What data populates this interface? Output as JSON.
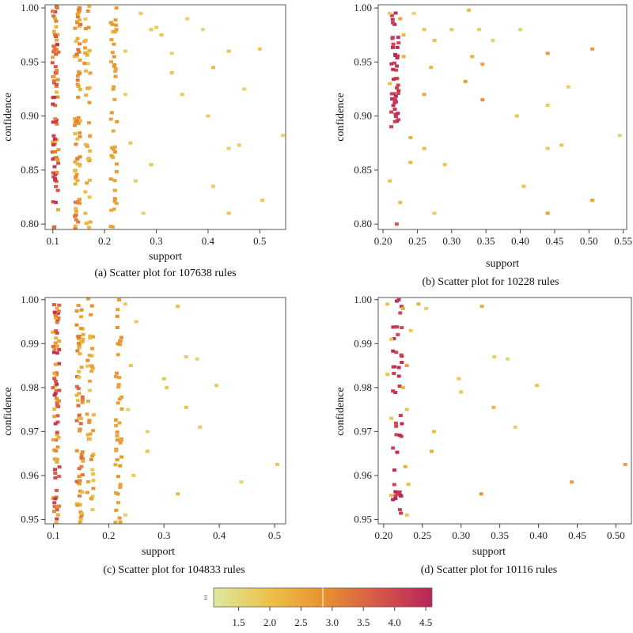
{
  "chart_data": [
    {
      "type": "scatter",
      "caption": "(a) Scatter plot for 107638 rules",
      "xlabel": "support",
      "ylabel": "confidence",
      "xlim": [
        0.085,
        0.55
      ],
      "ylim": [
        0.795,
        1.003
      ],
      "xticks": [
        0.1,
        0.2,
        0.3,
        0.4,
        0.5
      ],
      "xtick_labels": [
        "0.1",
        "0.2",
        "0.3",
        "0.4",
        "0.5"
      ],
      "yticks": [
        0.8,
        0.85,
        0.9,
        0.95,
        1.0
      ],
      "ytick_labels": [
        "0.80",
        "0.85",
        "0.90",
        "0.95",
        "1.00"
      ],
      "grid": false,
      "color_variable": "lift",
      "columns": [
        {
          "x": 0.105,
          "n": 80,
          "lift_min": 2.2,
          "lift_max": 4.5
        },
        {
          "x": 0.148,
          "n": 70,
          "lift_min": 2.0,
          "lift_max": 3.4
        },
        {
          "x": 0.167,
          "n": 40,
          "lift_min": 1.8,
          "lift_max": 3.0
        },
        {
          "x": 0.218,
          "n": 45,
          "lift_min": 2.3,
          "lift_max": 2.8
        }
      ],
      "points": [
        {
          "x": 0.27,
          "y": 0.995,
          "lift": 1.8
        },
        {
          "x": 0.29,
          "y": 0.98,
          "lift": 1.9
        },
        {
          "x": 0.31,
          "y": 0.975,
          "lift": 2.0
        },
        {
          "x": 0.33,
          "y": 0.958,
          "lift": 1.7
        },
        {
          "x": 0.36,
          "y": 0.99,
          "lift": 1.6
        },
        {
          "x": 0.39,
          "y": 0.98,
          "lift": 1.5
        },
        {
          "x": 0.41,
          "y": 0.945,
          "lift": 2.1
        },
        {
          "x": 0.44,
          "y": 0.96,
          "lift": 1.9
        },
        {
          "x": 0.47,
          "y": 0.925,
          "lift": 1.6
        },
        {
          "x": 0.5,
          "y": 0.962,
          "lift": 1.8
        },
        {
          "x": 0.4,
          "y": 0.9,
          "lift": 1.7
        },
        {
          "x": 0.35,
          "y": 0.92,
          "lift": 1.8
        },
        {
          "x": 0.44,
          "y": 0.87,
          "lift": 1.6
        },
        {
          "x": 0.46,
          "y": 0.873,
          "lift": 1.7
        },
        {
          "x": 0.545,
          "y": 0.882,
          "lift": 1.6
        },
        {
          "x": 0.29,
          "y": 0.855,
          "lift": 1.9
        },
        {
          "x": 0.41,
          "y": 0.835,
          "lift": 1.8
        },
        {
          "x": 0.505,
          "y": 0.822,
          "lift": 1.9
        },
        {
          "x": 0.44,
          "y": 0.81,
          "lift": 2.0
        },
        {
          "x": 0.275,
          "y": 0.81,
          "lift": 1.6
        },
        {
          "x": 0.26,
          "y": 0.84,
          "lift": 1.7
        },
        {
          "x": 0.25,
          "y": 0.875,
          "lift": 1.8
        },
        {
          "x": 0.24,
          "y": 0.92,
          "lift": 1.6
        },
        {
          "x": 0.33,
          "y": 0.94,
          "lift": 1.9
        },
        {
          "x": 0.3,
          "y": 0.982,
          "lift": 1.8
        },
        {
          "x": 0.24,
          "y": 0.96,
          "lift": 1.7
        }
      ]
    },
    {
      "type": "scatter",
      "caption": "(b) Scatter plot for 10228 rules",
      "xlabel": "support",
      "ylabel": "confidence",
      "xlim": [
        0.193,
        0.555
      ],
      "ylim": [
        0.795,
        1.003
      ],
      "xticks": [
        0.2,
        0.25,
        0.3,
        0.35,
        0.4,
        0.45,
        0.5,
        0.55
      ],
      "xtick_labels": [
        "0.20",
        "0.25",
        "0.30",
        "0.35",
        "0.40",
        "0.45",
        "0.50",
        "0.55"
      ],
      "yticks": [
        0.8,
        0.85,
        0.9,
        0.95,
        1.0
      ],
      "ytick_labels": [
        "0.80",
        "0.85",
        "0.90",
        "0.95",
        "1.00"
      ],
      "grid": false,
      "color_variable": "lift",
      "columns": [
        {
          "x": 0.218,
          "n": 45,
          "lift_min": 4.0,
          "lift_max": 4.6,
          "ymin": 0.89
        }
      ],
      "points": [
        {
          "x": 0.21,
          "y": 0.995,
          "lift": 1.8
        },
        {
          "x": 0.225,
          "y": 0.99,
          "lift": 2.5
        },
        {
          "x": 0.23,
          "y": 0.975,
          "lift": 2.2
        },
        {
          "x": 0.245,
          "y": 0.995,
          "lift": 1.6
        },
        {
          "x": 0.26,
          "y": 0.98,
          "lift": 1.9
        },
        {
          "x": 0.275,
          "y": 0.97,
          "lift": 2.0
        },
        {
          "x": 0.3,
          "y": 0.98,
          "lift": 1.8
        },
        {
          "x": 0.325,
          "y": 0.998,
          "lift": 2.1
        },
        {
          "x": 0.34,
          "y": 0.98,
          "lift": 1.7
        },
        {
          "x": 0.36,
          "y": 0.97,
          "lift": 1.6
        },
        {
          "x": 0.33,
          "y": 0.955,
          "lift": 2.3
        },
        {
          "x": 0.345,
          "y": 0.948,
          "lift": 2.5
        },
        {
          "x": 0.4,
          "y": 0.98,
          "lift": 1.6
        },
        {
          "x": 0.44,
          "y": 0.958,
          "lift": 2.7
        },
        {
          "x": 0.505,
          "y": 0.962,
          "lift": 2.6
        },
        {
          "x": 0.27,
          "y": 0.945,
          "lift": 2.2
        },
        {
          "x": 0.26,
          "y": 0.92,
          "lift": 2.4
        },
        {
          "x": 0.32,
          "y": 0.932,
          "lift": 2.6
        },
        {
          "x": 0.345,
          "y": 0.915,
          "lift": 2.9
        },
        {
          "x": 0.24,
          "y": 0.88,
          "lift": 2.3
        },
        {
          "x": 0.26,
          "y": 0.87,
          "lift": 2.1
        },
        {
          "x": 0.29,
          "y": 0.855,
          "lift": 1.9
        },
        {
          "x": 0.395,
          "y": 0.9,
          "lift": 2.0
        },
        {
          "x": 0.44,
          "y": 0.91,
          "lift": 1.8
        },
        {
          "x": 0.47,
          "y": 0.927,
          "lift": 1.7
        },
        {
          "x": 0.545,
          "y": 0.882,
          "lift": 1.6
        },
        {
          "x": 0.44,
          "y": 0.87,
          "lift": 1.8
        },
        {
          "x": 0.46,
          "y": 0.873,
          "lift": 1.9
        },
        {
          "x": 0.24,
          "y": 0.857,
          "lift": 2.2
        },
        {
          "x": 0.405,
          "y": 0.835,
          "lift": 2.0
        },
        {
          "x": 0.21,
          "y": 0.84,
          "lift": 1.9
        },
        {
          "x": 0.225,
          "y": 0.82,
          "lift": 2.1
        },
        {
          "x": 0.275,
          "y": 0.81,
          "lift": 1.7
        },
        {
          "x": 0.44,
          "y": 0.81,
          "lift": 2.6
        },
        {
          "x": 0.505,
          "y": 0.822,
          "lift": 2.5
        },
        {
          "x": 0.22,
          "y": 0.8,
          "lift": 3.8
        },
        {
          "x": 0.23,
          "y": 0.955,
          "lift": 2.3
        },
        {
          "x": 0.21,
          "y": 0.93,
          "lift": 2.0
        }
      ]
    },
    {
      "type": "scatter",
      "caption": "(c) Scatter plot for 104833 rules",
      "xlabel": "support",
      "ylabel": "confidence",
      "xlim": [
        0.085,
        0.52
      ],
      "ylim": [
        0.949,
        1.0005
      ],
      "xticks": [
        0.1,
        0.2,
        0.3,
        0.4,
        0.5
      ],
      "xtick_labels": [
        "0.1",
        "0.2",
        "0.3",
        "0.4",
        "0.5"
      ],
      "yticks": [
        0.95,
        0.96,
        0.97,
        0.98,
        0.99,
        1.0
      ],
      "ytick_labels": [
        "0.95",
        "0.96",
        "0.97",
        "0.98",
        "0.99",
        "1.00"
      ],
      "grid": false,
      "color_variable": "lift",
      "columns": [
        {
          "x": 0.105,
          "n": 80,
          "lift_min": 2.2,
          "lift_max": 4.5
        },
        {
          "x": 0.148,
          "n": 70,
          "lift_min": 2.0,
          "lift_max": 3.6
        },
        {
          "x": 0.167,
          "n": 40,
          "lift_min": 1.8,
          "lift_max": 3.0
        },
        {
          "x": 0.218,
          "n": 45,
          "lift_min": 2.4,
          "lift_max": 2.9
        }
      ],
      "points": [
        {
          "x": 0.23,
          "y": 0.999,
          "lift": 1.7
        },
        {
          "x": 0.25,
          "y": 0.995,
          "lift": 1.8
        },
        {
          "x": 0.325,
          "y": 0.9985,
          "lift": 2.0
        },
        {
          "x": 0.3,
          "y": 0.982,
          "lift": 1.9
        },
        {
          "x": 0.305,
          "y": 0.98,
          "lift": 1.8
        },
        {
          "x": 0.34,
          "y": 0.987,
          "lift": 1.7
        },
        {
          "x": 0.36,
          "y": 0.9865,
          "lift": 1.6
        },
        {
          "x": 0.395,
          "y": 0.9805,
          "lift": 1.8
        },
        {
          "x": 0.34,
          "y": 0.9755,
          "lift": 2.0
        },
        {
          "x": 0.365,
          "y": 0.971,
          "lift": 1.7
        },
        {
          "x": 0.27,
          "y": 0.97,
          "lift": 1.6
        },
        {
          "x": 0.27,
          "y": 0.9655,
          "lift": 1.9
        },
        {
          "x": 0.505,
          "y": 0.9625,
          "lift": 1.8
        },
        {
          "x": 0.44,
          "y": 0.9585,
          "lift": 1.6
        },
        {
          "x": 0.325,
          "y": 0.9558,
          "lift": 2.1
        },
        {
          "x": 0.23,
          "y": 0.951,
          "lift": 1.7
        },
        {
          "x": 0.24,
          "y": 0.985,
          "lift": 1.9
        },
        {
          "x": 0.235,
          "y": 0.975,
          "lift": 1.6
        },
        {
          "x": 0.245,
          "y": 0.96,
          "lift": 1.8
        }
      ]
    },
    {
      "type": "scatter",
      "caption": "(d) Scatter plot for 10116 rules",
      "xlabel": "support",
      "ylabel": "confidence",
      "xlim": [
        0.193,
        0.52
      ],
      "ylim": [
        0.949,
        1.0005
      ],
      "xticks": [
        0.2,
        0.25,
        0.3,
        0.35,
        0.4,
        0.45,
        0.5
      ],
      "xtick_labels": [
        "0.20",
        "0.25",
        "0.30",
        "0.35",
        "0.40",
        "0.45",
        "0.50"
      ],
      "yticks": [
        0.95,
        0.96,
        0.97,
        0.98,
        0.99,
        1.0
      ],
      "ytick_labels": [
        "0.95",
        "0.96",
        "0.97",
        "0.98",
        "0.99",
        "1.00"
      ],
      "grid": false,
      "color_variable": "lift",
      "columns": [
        {
          "x": 0.218,
          "n": 45,
          "lift_min": 4.0,
          "lift_max": 4.6
        }
      ],
      "points": [
        {
          "x": 0.205,
          "y": 0.999,
          "lift": 2.0
        },
        {
          "x": 0.21,
          "y": 0.991,
          "lift": 1.8
        },
        {
          "x": 0.225,
          "y": 0.998,
          "lift": 2.4
        },
        {
          "x": 0.23,
          "y": 0.985,
          "lift": 2.6
        },
        {
          "x": 0.225,
          "y": 0.98,
          "lift": 2.2
        },
        {
          "x": 0.235,
          "y": 0.993,
          "lift": 1.9
        },
        {
          "x": 0.245,
          "y": 0.999,
          "lift": 2.3
        },
        {
          "x": 0.255,
          "y": 0.998,
          "lift": 1.7
        },
        {
          "x": 0.21,
          "y": 0.973,
          "lift": 1.8
        },
        {
          "x": 0.205,
          "y": 0.983,
          "lift": 1.9
        },
        {
          "x": 0.23,
          "y": 0.975,
          "lift": 2.0
        },
        {
          "x": 0.265,
          "y": 0.97,
          "lift": 2.1
        },
        {
          "x": 0.262,
          "y": 0.9655,
          "lift": 2.3
        },
        {
          "x": 0.297,
          "y": 0.982,
          "lift": 1.8
        },
        {
          "x": 0.3,
          "y": 0.979,
          "lift": 1.9
        },
        {
          "x": 0.327,
          "y": 0.9985,
          "lift": 2.4
        },
        {
          "x": 0.343,
          "y": 0.987,
          "lift": 1.7
        },
        {
          "x": 0.36,
          "y": 0.9865,
          "lift": 1.6
        },
        {
          "x": 0.342,
          "y": 0.9755,
          "lift": 2.2
        },
        {
          "x": 0.37,
          "y": 0.971,
          "lift": 1.7
        },
        {
          "x": 0.398,
          "y": 0.9805,
          "lift": 1.9
        },
        {
          "x": 0.443,
          "y": 0.9585,
          "lift": 2.6
        },
        {
          "x": 0.512,
          "y": 0.9625,
          "lift": 2.5
        },
        {
          "x": 0.326,
          "y": 0.9558,
          "lift": 2.7
        },
        {
          "x": 0.23,
          "y": 0.951,
          "lift": 1.9
        },
        {
          "x": 0.21,
          "y": 0.9555,
          "lift": 2.1
        },
        {
          "x": 0.232,
          "y": 0.958,
          "lift": 2.0
        },
        {
          "x": 0.228,
          "y": 0.962,
          "lift": 2.3
        }
      ]
    }
  ],
  "colorbar": {
    "label": "lift",
    "min": 1.1,
    "max": 4.6,
    "ticks": [
      1.5,
      2.0,
      2.5,
      3.0,
      3.5,
      4.0,
      4.5
    ],
    "tick_labels": [
      "1.5",
      "2.0",
      "2.5",
      "3.0",
      "3.5",
      "4.0",
      "4.5"
    ],
    "colors": [
      "#dde8a0",
      "#ecc24a",
      "#e8932e",
      "#d8584a",
      "#b82458"
    ]
  }
}
